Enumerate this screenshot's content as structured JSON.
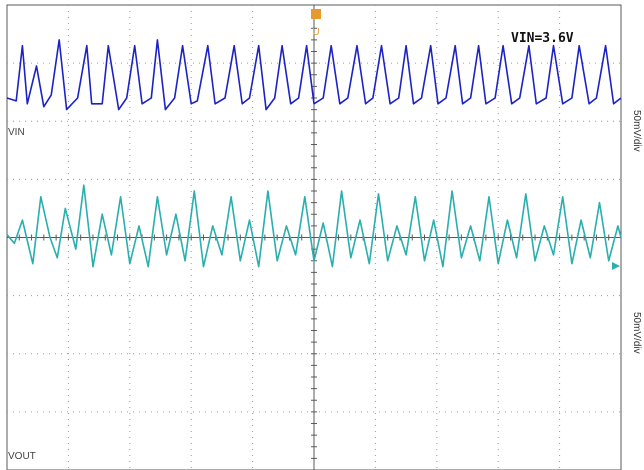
{
  "annotation": "VIN=3.6V",
  "colors": {
    "background": "#ffffff",
    "grid": "#9a9a9a",
    "axis": "#5a5a5a",
    "trigger": "#e69a2e",
    "ch1": "#1c22c4",
    "ch2": "#2aaeae"
  },
  "chart_data": {
    "type": "line",
    "title": "",
    "xlabel": "",
    "ylabel": "",
    "grid": true,
    "divisions": {
      "x": 10,
      "y": 8
    },
    "trigger_marker": "U",
    "xlim": [
      0,
      10
    ],
    "ylim": [
      -4,
      4
    ],
    "series": [
      {
        "name": "VIN",
        "scale_label": "50mV/div",
        "color": "#1c22c4",
        "x": [
          0.0,
          0.15,
          0.25,
          0.33,
          0.48,
          0.6,
          0.72,
          0.85,
          0.97,
          1.15,
          1.3,
          1.38,
          1.55,
          1.65,
          1.82,
          1.95,
          2.08,
          2.2,
          2.35,
          2.45,
          2.58,
          2.73,
          2.86,
          3.0,
          3.1,
          3.27,
          3.39,
          3.55,
          3.7,
          3.83,
          3.95,
          4.1,
          4.22,
          4.36,
          4.48,
          4.62,
          4.75,
          4.88,
          5.0,
          5.15,
          5.28,
          5.42,
          5.55,
          5.7,
          5.84,
          5.96,
          6.1,
          6.24,
          6.38,
          6.5,
          6.62,
          6.75,
          6.9,
          7.02,
          7.15,
          7.3,
          7.42,
          7.55,
          7.68,
          7.8,
          7.95,
          8.08,
          8.22,
          8.35,
          8.5,
          8.62,
          8.78,
          8.9,
          9.05,
          9.2,
          9.32,
          9.48,
          9.6,
          9.75,
          9.88,
          10.0
        ],
        "y": [
          2.4,
          2.35,
          3.3,
          2.3,
          2.95,
          2.25,
          2.45,
          3.4,
          2.2,
          2.4,
          3.3,
          2.3,
          2.3,
          3.3,
          2.2,
          2.4,
          3.3,
          2.3,
          2.4,
          3.4,
          2.2,
          2.4,
          3.3,
          2.3,
          2.35,
          3.3,
          2.3,
          2.4,
          3.3,
          2.3,
          2.4,
          3.3,
          2.2,
          2.4,
          3.3,
          2.3,
          2.4,
          3.3,
          2.3,
          2.4,
          3.3,
          2.3,
          2.4,
          3.3,
          2.3,
          2.4,
          3.3,
          2.3,
          2.4,
          3.3,
          2.3,
          2.4,
          3.3,
          2.3,
          2.4,
          3.3,
          2.3,
          2.4,
          3.3,
          2.3,
          2.4,
          3.3,
          2.3,
          2.4,
          3.3,
          2.3,
          2.4,
          3.3,
          2.3,
          2.4,
          3.3,
          2.3,
          2.4,
          3.3,
          2.3,
          2.4
        ]
      },
      {
        "name": "VOUT",
        "scale_label": "50mV/div",
        "color": "#2aaeae",
        "x": [
          0.0,
          0.12,
          0.25,
          0.42,
          0.55,
          0.7,
          0.82,
          0.95,
          1.12,
          1.25,
          1.4,
          1.55,
          1.7,
          1.85,
          2.0,
          2.15,
          2.3,
          2.45,
          2.6,
          2.75,
          2.9,
          3.05,
          3.2,
          3.35,
          3.5,
          3.65,
          3.8,
          3.95,
          4.1,
          4.25,
          4.4,
          4.55,
          4.7,
          4.85,
          5.0,
          5.15,
          5.3,
          5.45,
          5.6,
          5.75,
          5.9,
          6.05,
          6.2,
          6.35,
          6.5,
          6.65,
          6.8,
          6.95,
          7.1,
          7.25,
          7.4,
          7.55,
          7.7,
          7.85,
          8.0,
          8.15,
          8.3,
          8.45,
          8.6,
          8.75,
          8.9,
          9.05,
          9.2,
          9.35,
          9.5,
          9.65,
          9.8,
          9.95,
          10.0
        ],
        "y": [
          0.05,
          -0.1,
          0.3,
          -0.45,
          0.7,
          0.0,
          -0.35,
          0.5,
          -0.2,
          0.9,
          -0.5,
          0.4,
          -0.3,
          0.7,
          -0.45,
          0.2,
          -0.5,
          0.7,
          -0.3,
          0.4,
          -0.4,
          0.8,
          -0.5,
          0.2,
          -0.3,
          0.7,
          -0.4,
          0.3,
          -0.5,
          0.8,
          -0.4,
          0.2,
          -0.3,
          0.7,
          -0.4,
          0.25,
          -0.5,
          0.8,
          -0.35,
          0.3,
          -0.45,
          0.75,
          -0.4,
          0.2,
          -0.3,
          0.7,
          -0.4,
          0.3,
          -0.5,
          0.8,
          -0.35,
          0.2,
          -0.4,
          0.7,
          -0.45,
          0.3,
          -0.35,
          0.75,
          -0.4,
          0.2,
          -0.3,
          0.7,
          -0.45,
          0.3,
          -0.35,
          0.6,
          -0.4,
          0.2,
          0.0
        ]
      }
    ]
  }
}
